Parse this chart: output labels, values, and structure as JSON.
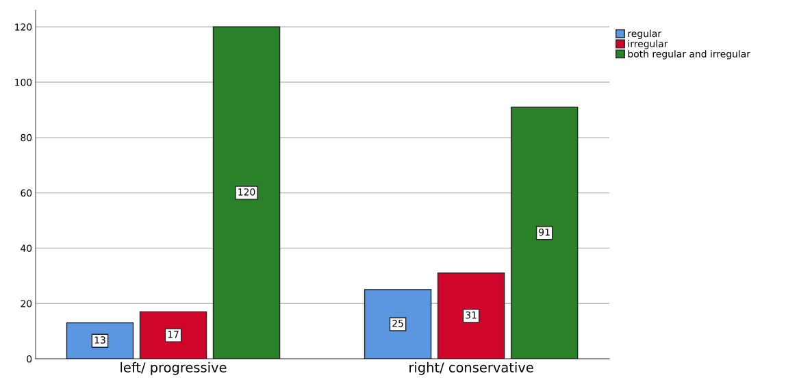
{
  "chart_data": {
    "type": "bar",
    "categories": [
      "left/ progressive",
      "right/ conservative"
    ],
    "series": [
      {
        "name": "regular",
        "color": "#5a97e0",
        "values": [
          13,
          25
        ]
      },
      {
        "name": "irregular",
        "color": "#d0052c",
        "values": [
          17,
          31
        ]
      },
      {
        "name": "both regular and irregular",
        "color": "#2a812a",
        "values": [
          120,
          91
        ]
      }
    ],
    "ylim": [
      0,
      126
    ],
    "yticks": [
      0,
      20,
      40,
      60,
      80,
      100,
      120
    ],
    "grid": "y",
    "legend": "top right",
    "data_labels": true
  }
}
